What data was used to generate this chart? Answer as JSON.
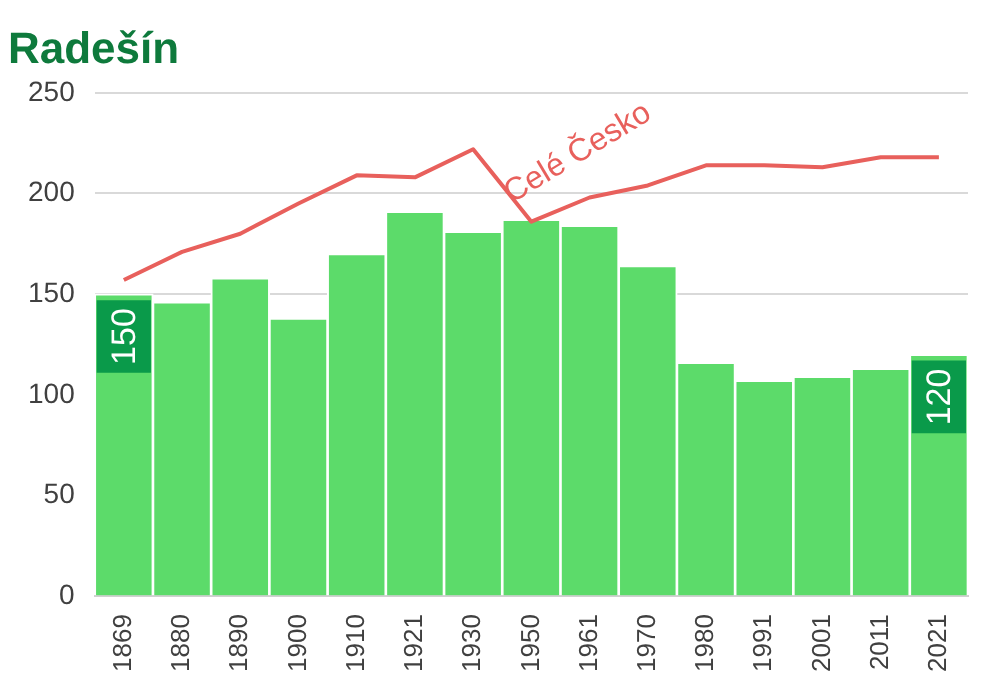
{
  "chart_data": {
    "type": "bar",
    "title": "Radešín",
    "categories": [
      "1869",
      "1880",
      "1890",
      "1900",
      "1910",
      "1921",
      "1930",
      "1950",
      "1961",
      "1970",
      "1980",
      "1991",
      "2001",
      "2011",
      "2021"
    ],
    "series": [
      {
        "color": "#5cdb6a",
        "values": [
          150,
          146,
          158,
          138,
          170,
          191,
          181,
          187,
          184,
          164,
          116,
          107,
          109,
          113,
          120
        ],
        "value_labels": [
          "150",
          null,
          null,
          null,
          null,
          null,
          null,
          null,
          null,
          null,
          null,
          null,
          null,
          null,
          "120"
        ]
      },
      {
        "type": "line",
        "name": "Celé Česko",
        "color": "#e8605c",
        "values": [
          157,
          171,
          180,
          195,
          209,
          208,
          222,
          186,
          198,
          204,
          214,
          214,
          213,
          218,
          218
        ]
      }
    ],
    "ylim": [
      0,
      250
    ],
    "yticks": [
      0,
      50,
      100,
      150,
      200,
      250
    ],
    "grid": "y",
    "legend": false,
    "marker": "none"
  }
}
